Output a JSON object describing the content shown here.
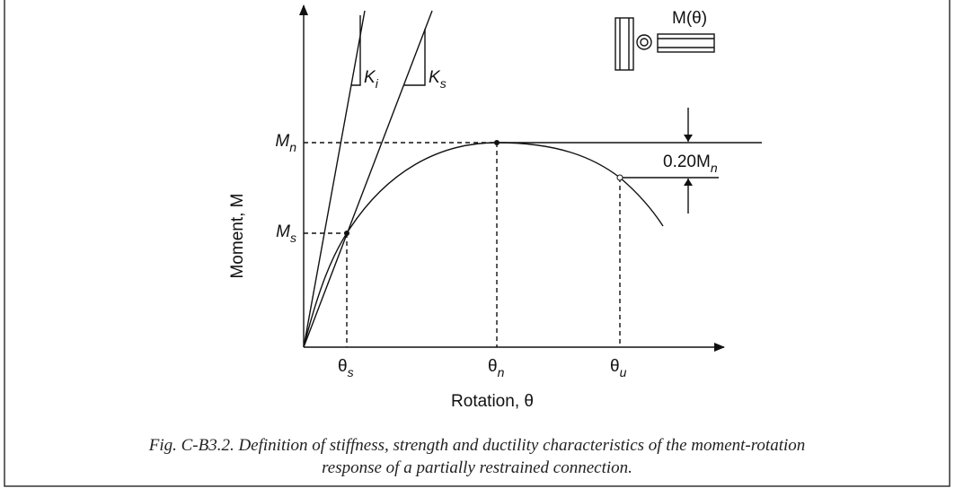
{
  "diagram": {
    "inset_label": "M(θ)",
    "y_axis_label": "Moment, M",
    "x_axis_label": "Rotation, θ",
    "stiffness_labels": [
      {
        "base": "K",
        "sub": "i"
      },
      {
        "base": "K",
        "sub": "s"
      }
    ],
    "y_levels": [
      {
        "base": "M",
        "sub": "n"
      },
      {
        "base": "M",
        "sub": "s"
      }
    ],
    "x_levels": [
      {
        "base": "θ",
        "sub": "s"
      },
      {
        "base": "θ",
        "sub": "n"
      },
      {
        "base": "θ",
        "sub": "u"
      }
    ],
    "drop_label": {
      "base": "0.20M",
      "sub": "n"
    }
  },
  "caption": [
    "Fig.  C-B3.2.  Definition of stiffness, strength and ductility characteristics of the moment-rotation",
    "response of a partially restrained connection."
  ]
}
